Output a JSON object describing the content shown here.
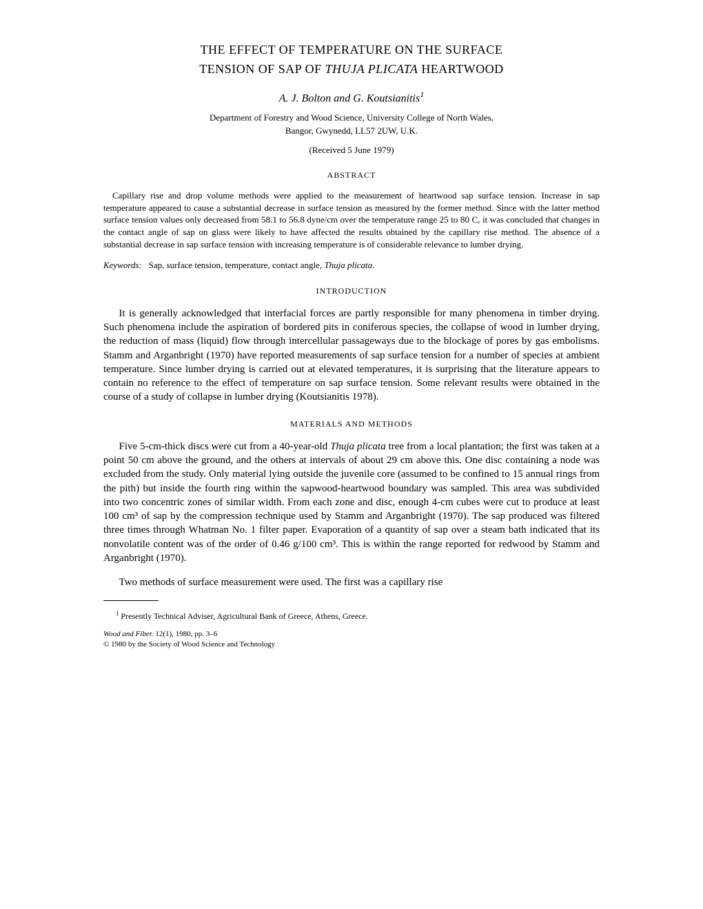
{
  "title": {
    "line1": "THE EFFECT OF TEMPERATURE ON THE SURFACE",
    "line2_prefix": "TENSION OF SAP OF ",
    "line2_italic": "THUJA PLICATA",
    "line2_suffix": " HEARTWOOD"
  },
  "authors": {
    "text": "A. J. Bolton and G. Koutsianitis",
    "superscript": "1"
  },
  "affiliation": {
    "line1": "Department of Forestry and Wood Science, University College of North Wales,",
    "line2": "Bangor, Gwynedd, LL57 2UW, U.K."
  },
  "received": "(Received 5 June 1979)",
  "abstract": {
    "heading": "ABSTRACT",
    "text": "Capillary rise and drop volume methods were applied to the measurement of heartwood sap surface tension. Increase in sap temperature appeared to cause a substantial decrease in surface tension as measured by the former method. Since with the latter method surface tension values only decreased from 58.1 to 56.8 dyne/cm over the temperature range 25 to 80 C, it was concluded that changes in the contact angle of sap on glass were likely to have affected the results obtained by the capillary rise method. The absence of a substantial decrease in sap surface tension with increasing temperature is of considerable relevance to lumber drying."
  },
  "keywords": {
    "label": "Keywords:",
    "text": "Sap, surface tension, temperature, contact angle, ",
    "italic": "Thuja plicata",
    "suffix": "."
  },
  "introduction": {
    "heading": "INTRODUCTION",
    "para1": "It is generally acknowledged that interfacial forces are partly responsible for many phenomena in timber drying. Such phenomena include the aspiration of bordered pits in coniferous species, the collapse of wood in lumber drying, the reduction of mass (liquid) flow through intercellular passageways due to the blockage of pores by gas embolisms. Stamm and Arganbright (1970) have reported measurements of sap surface tension for a number of species at ambient temperature. Since lumber drying is carried out at elevated temperatures, it is surprising that the literature appears to contain no reference to the effect of temperature on sap surface tension. Some relevant results were obtained in the course of a study of collapse in lumber drying (Koutsianitis 1978)."
  },
  "materials": {
    "heading": "MATERIALS AND METHODS",
    "para1_prefix": "Five 5-cm-thick discs were cut from a 40-year-old ",
    "para1_italic": "Thuja plicata",
    "para1_suffix": " tree from a local plantation; the first was taken at a point 50 cm above the ground, and the others at intervals of about 29 cm above this. One disc containing a node was excluded from the study. Only material lying outside the juvenile core (assumed to be confined to 15 annual rings from the pith) but inside the fourth ring within the sapwood-heartwood boundary was sampled. This area was subdivided into two concentric zones of similar width. From each zone and disc, enough 4-cm cubes were cut to produce at least 100 cm³ of sap by the compression technique used by Stamm and Arganbright (1970). The sap produced was filtered three times through Whatman No. 1 filter paper. Evaporation of a quantity of sap over a steam bath indicated that its nonvolatile content was of the order of 0.46 g/100 cm³. This is within the range reported for redwood by Stamm and Arganbright (1970).",
    "para2": "Two methods of surface measurement were used. The first was a capillary rise"
  },
  "footnote": {
    "superscript": "1",
    "text": " Presently Technical Adviser, Agricultural Bank of Greece, Athens, Greece."
  },
  "journal": {
    "line1_italic": "Wood and Fiber.",
    "line1_rest": " 12(1), 1980, pp. 3–6",
    "line2": "© 1980 by the Society of Wood Science and Technology"
  }
}
